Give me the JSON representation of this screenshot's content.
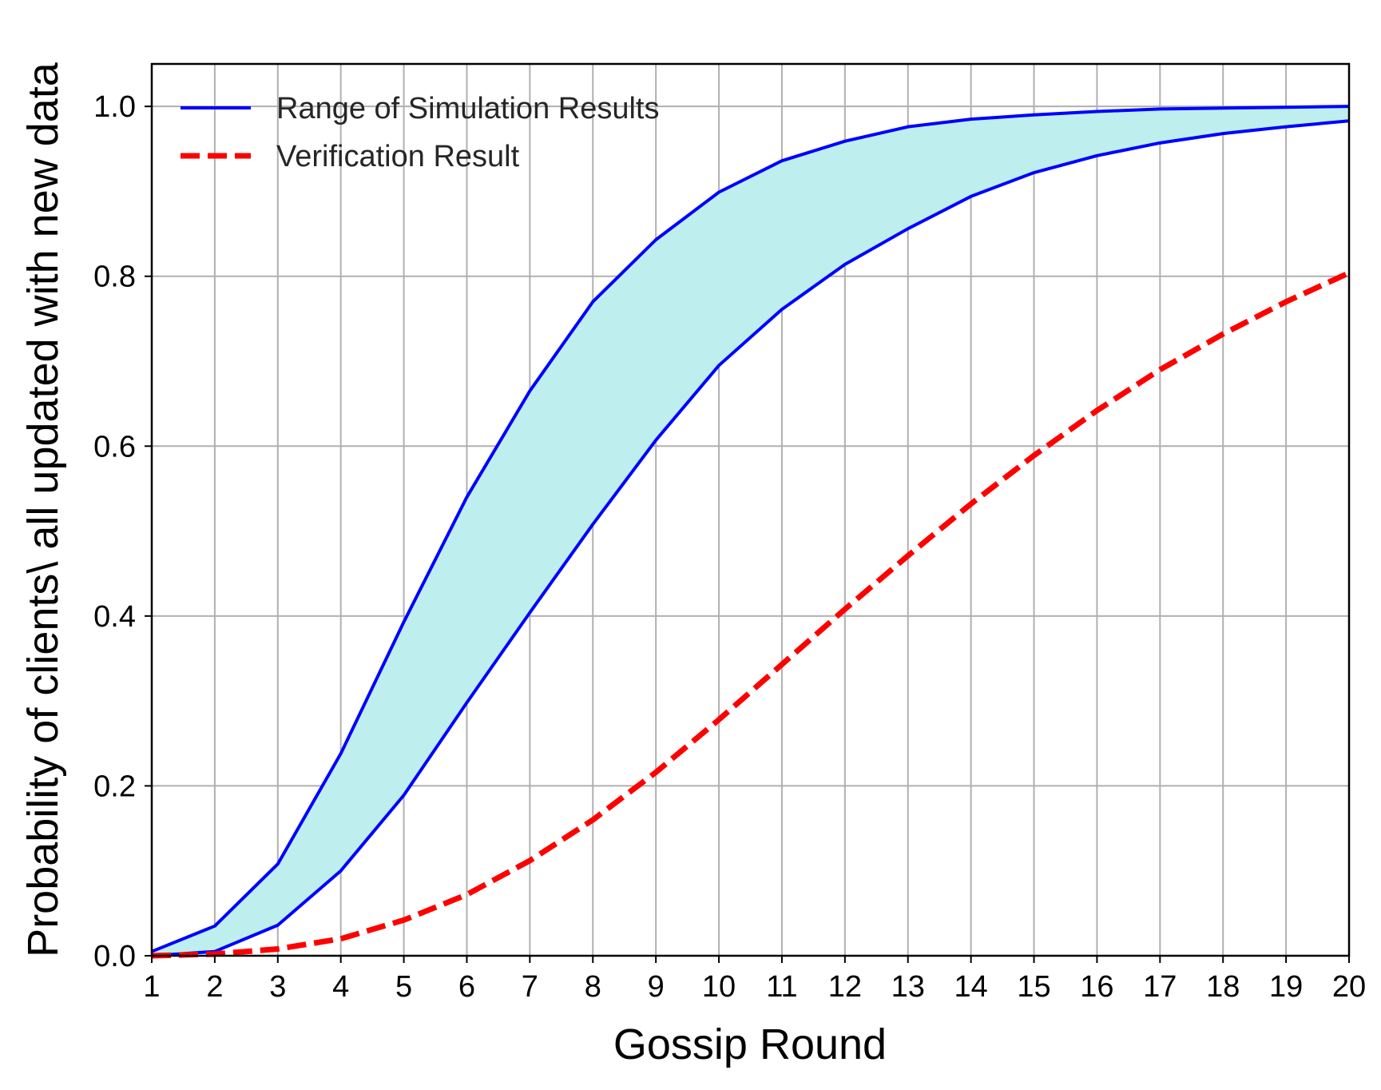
{
  "colors": {
    "background": "#ffffff",
    "grid": "#b0b0b0",
    "axes": "#000000",
    "band_fill": "#bfeeee",
    "band_line": "#0000ff",
    "verification": "#ff0000",
    "legend_text": "#262626"
  },
  "chart_data": {
    "type": "line",
    "title": "",
    "xlabel": "Gossip Round",
    "ylabel": "Probability of clients\\ all updated with new data",
    "xlim": [
      1,
      20
    ],
    "ylim": [
      0,
      1.05
    ],
    "grid": true,
    "legend_position": "top-left",
    "x": [
      1,
      2,
      3,
      4,
      5,
      6,
      7,
      8,
      9,
      10,
      11,
      12,
      13,
      14,
      15,
      16,
      17,
      18,
      19,
      20
    ],
    "x_ticks": [
      "1",
      "2",
      "3",
      "4",
      "5",
      "6",
      "7",
      "8",
      "9",
      "10",
      "11",
      "12",
      "13",
      "14",
      "15",
      "16",
      "17",
      "18",
      "19",
      "20"
    ],
    "y_ticks": [
      {
        "value": 0.0,
        "label": "0.0"
      },
      {
        "value": 0.2,
        "label": "0.2"
      },
      {
        "value": 0.4,
        "label": "0.4"
      },
      {
        "value": 0.6,
        "label": "0.6"
      },
      {
        "value": 0.8,
        "label": "0.8"
      },
      {
        "value": 1.0,
        "label": "1.0"
      }
    ],
    "series": [
      {
        "name": "Range of Simulation Results",
        "kind": "band",
        "color": "#0000ff",
        "fill": "#bfeeee",
        "upper": [
          0.005,
          0.035,
          0.108,
          0.238,
          0.393,
          0.54,
          0.665,
          0.77,
          0.843,
          0.899,
          0.936,
          0.959,
          0.976,
          0.985,
          0.99,
          0.994,
          0.997,
          0.998,
          0.999,
          1.0
        ],
        "lower": [
          0.0,
          0.005,
          0.036,
          0.1,
          0.189,
          0.298,
          0.404,
          0.508,
          0.607,
          0.695,
          0.761,
          0.814,
          0.856,
          0.894,
          0.922,
          0.942,
          0.957,
          0.968,
          0.976,
          0.983
        ]
      },
      {
        "name": "Verification Result",
        "kind": "line",
        "dashed": true,
        "color": "#ff0000",
        "values": [
          0.0,
          0.002,
          0.008,
          0.02,
          0.042,
          0.072,
          0.112,
          0.16,
          0.216,
          0.278,
          0.343,
          0.408,
          0.471,
          0.532,
          0.589,
          0.642,
          0.69,
          0.732,
          0.77,
          0.804
        ]
      }
    ]
  }
}
